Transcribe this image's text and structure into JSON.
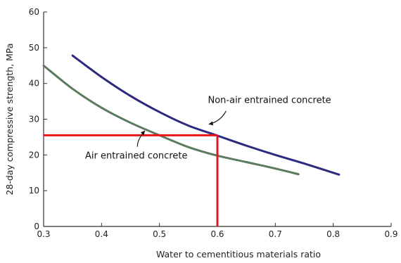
{
  "chart_data": {
    "type": "line",
    "title": "",
    "xlabel": "Water to cementitious materials ratio",
    "ylabel": "28-day compressive strength, MPa",
    "xlim": [
      0.3,
      0.9
    ],
    "ylim": [
      0,
      60
    ],
    "xticks": [
      0.3,
      0.4,
      0.5,
      0.6,
      0.7,
      0.8,
      0.9
    ],
    "yticks": [
      0,
      10,
      20,
      30,
      40,
      50,
      60
    ],
    "xtick_labels": [
      "0.3",
      "0.4",
      "0.5",
      "0.6",
      "0.7",
      "0.8",
      "0.9"
    ],
    "ytick_labels": [
      "0",
      "10",
      "20",
      "30",
      "40",
      "50",
      "60"
    ],
    "grid": false,
    "legend": "none",
    "series": [
      {
        "name": "Non-air entrained concrete",
        "color": "#2b2a7e",
        "x": [
          0.35,
          0.4,
          0.45,
          0.5,
          0.55,
          0.6,
          0.65,
          0.7,
          0.75,
          0.81
        ],
        "y": [
          47.8,
          41.8,
          36.5,
          32.0,
          28.2,
          25.4,
          22.6,
          20.0,
          17.6,
          14.5
        ]
      },
      {
        "name": "Air entrained concrete",
        "color": "#5c7a5e",
        "x": [
          0.3,
          0.35,
          0.4,
          0.45,
          0.5,
          0.55,
          0.6,
          0.65,
          0.7,
          0.74
        ],
        "y": [
          45.0,
          38.5,
          33.2,
          29.0,
          25.5,
          22.2,
          19.8,
          18.0,
          16.2,
          14.6
        ]
      }
    ],
    "reference_lines": {
      "color": "#e8141b",
      "x": 0.6,
      "y": 25.5
    },
    "annotations": [
      {
        "text": "Non-air entrained concrete",
        "x": 0.69,
        "y": 34.5,
        "arrow_to": [
          0.585,
          28.6
        ],
        "arrow_from": [
          0.615,
          32.3
        ]
      },
      {
        "text": "Air entrained concrete",
        "x": 0.46,
        "y": 19.0,
        "arrow_to": [
          0.475,
          26.8
        ],
        "arrow_from": [
          0.462,
          22.3
        ]
      }
    ]
  }
}
